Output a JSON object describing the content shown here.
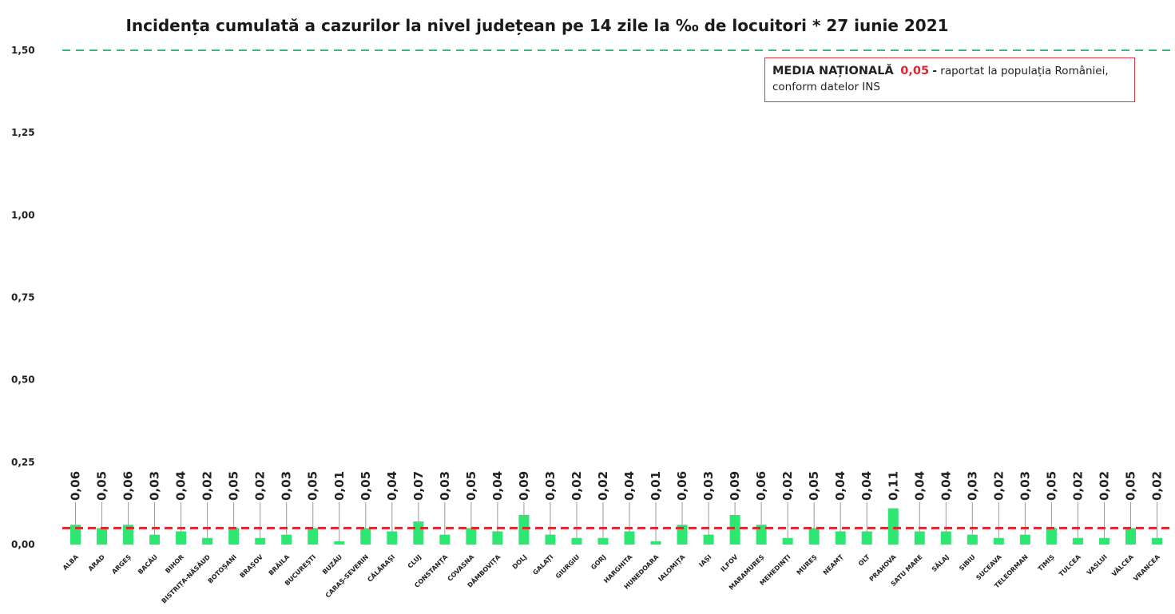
{
  "chart_data": {
    "type": "bar",
    "title": "Incidența cumulată a cazurilor la nivel județean pe 14 zile la ‰ de locuitori *  27 iunie 2021",
    "xlabel": "",
    "ylabel": "",
    "ylim": [
      0,
      1.5
    ],
    "yticks": [
      "0,00",
      "0,25",
      "0,50",
      "0,75",
      "1,00",
      "1,25",
      "1,50"
    ],
    "grid": false,
    "categories": [
      "ALBA",
      "ARAD",
      "ARGEȘ",
      "BACĂU",
      "BIHOR",
      "BISTRIȚA-NĂSĂUD",
      "BOTOȘANI",
      "BRAȘOV",
      "BRĂILA",
      "BUCUREȘTI",
      "BUZĂU",
      "CARAȘ-SEVERIN",
      "CĂLĂRAȘI",
      "CLUJ",
      "CONSTANȚA",
      "COVASNA",
      "DÂMBOVIȚA",
      "DOLJ",
      "GALAȚI",
      "GIURGIU",
      "GORJ",
      "HARGHITA",
      "HUNEDOARA",
      "IALOMIȚA",
      "IAȘI",
      "ILFOV",
      "MARAMUREȘ",
      "MEHEDINȚI",
      "MUREȘ",
      "NEAMȚ",
      "OLT",
      "PRAHOVA",
      "SATU MARE",
      "SĂLAJ",
      "SIBIU",
      "SUCEAVA",
      "TELEORMAN",
      "TIMIȘ",
      "TULCEA",
      "VASLUI",
      "VÂLCEA",
      "VRANCEA"
    ],
    "values": [
      0.06,
      0.05,
      0.06,
      0.03,
      0.04,
      0.02,
      0.05,
      0.02,
      0.03,
      0.05,
      0.01,
      0.05,
      0.04,
      0.07,
      0.03,
      0.05,
      0.04,
      0.09,
      0.03,
      0.02,
      0.02,
      0.04,
      0.01,
      0.06,
      0.03,
      0.09,
      0.06,
      0.02,
      0.05,
      0.04,
      0.04,
      0.11,
      0.04,
      0.04,
      0.03,
      0.02,
      0.03,
      0.05,
      0.02,
      0.02,
      0.05,
      0.02
    ],
    "value_labels": [
      "0,06",
      "0,05",
      "0,06",
      "0,03",
      "0,04",
      "0,02",
      "0,05",
      "0,02",
      "0,03",
      "0,05",
      "0,01",
      "0,05",
      "0,04",
      "0,07",
      "0,03",
      "0,05",
      "0,04",
      "0,09",
      "0,03",
      "0,02",
      "0,02",
      "0,04",
      "0,01",
      "0,06",
      "0,03",
      "0,09",
      "0,06",
      "0,02",
      "0,05",
      "0,04",
      "0,04",
      "0,11",
      "0,04",
      "0,04",
      "0,03",
      "0,02",
      "0,03",
      "0,05",
      "0,02",
      "0,02",
      "0,05",
      "0,02"
    ],
    "national_average": 0.05,
    "threshold": 1.5,
    "colors": {
      "bar": "#2ee672",
      "average_line": "#d9262b",
      "threshold_line": "#3cb878",
      "leader": "#9a9a9a"
    },
    "annotation": {
      "lead": "MEDIA NAȚIONALĂ",
      "value": "0,05",
      "dash": "-",
      "text1": "raportat la populația României,",
      "text2": "conform datelor INS"
    }
  }
}
